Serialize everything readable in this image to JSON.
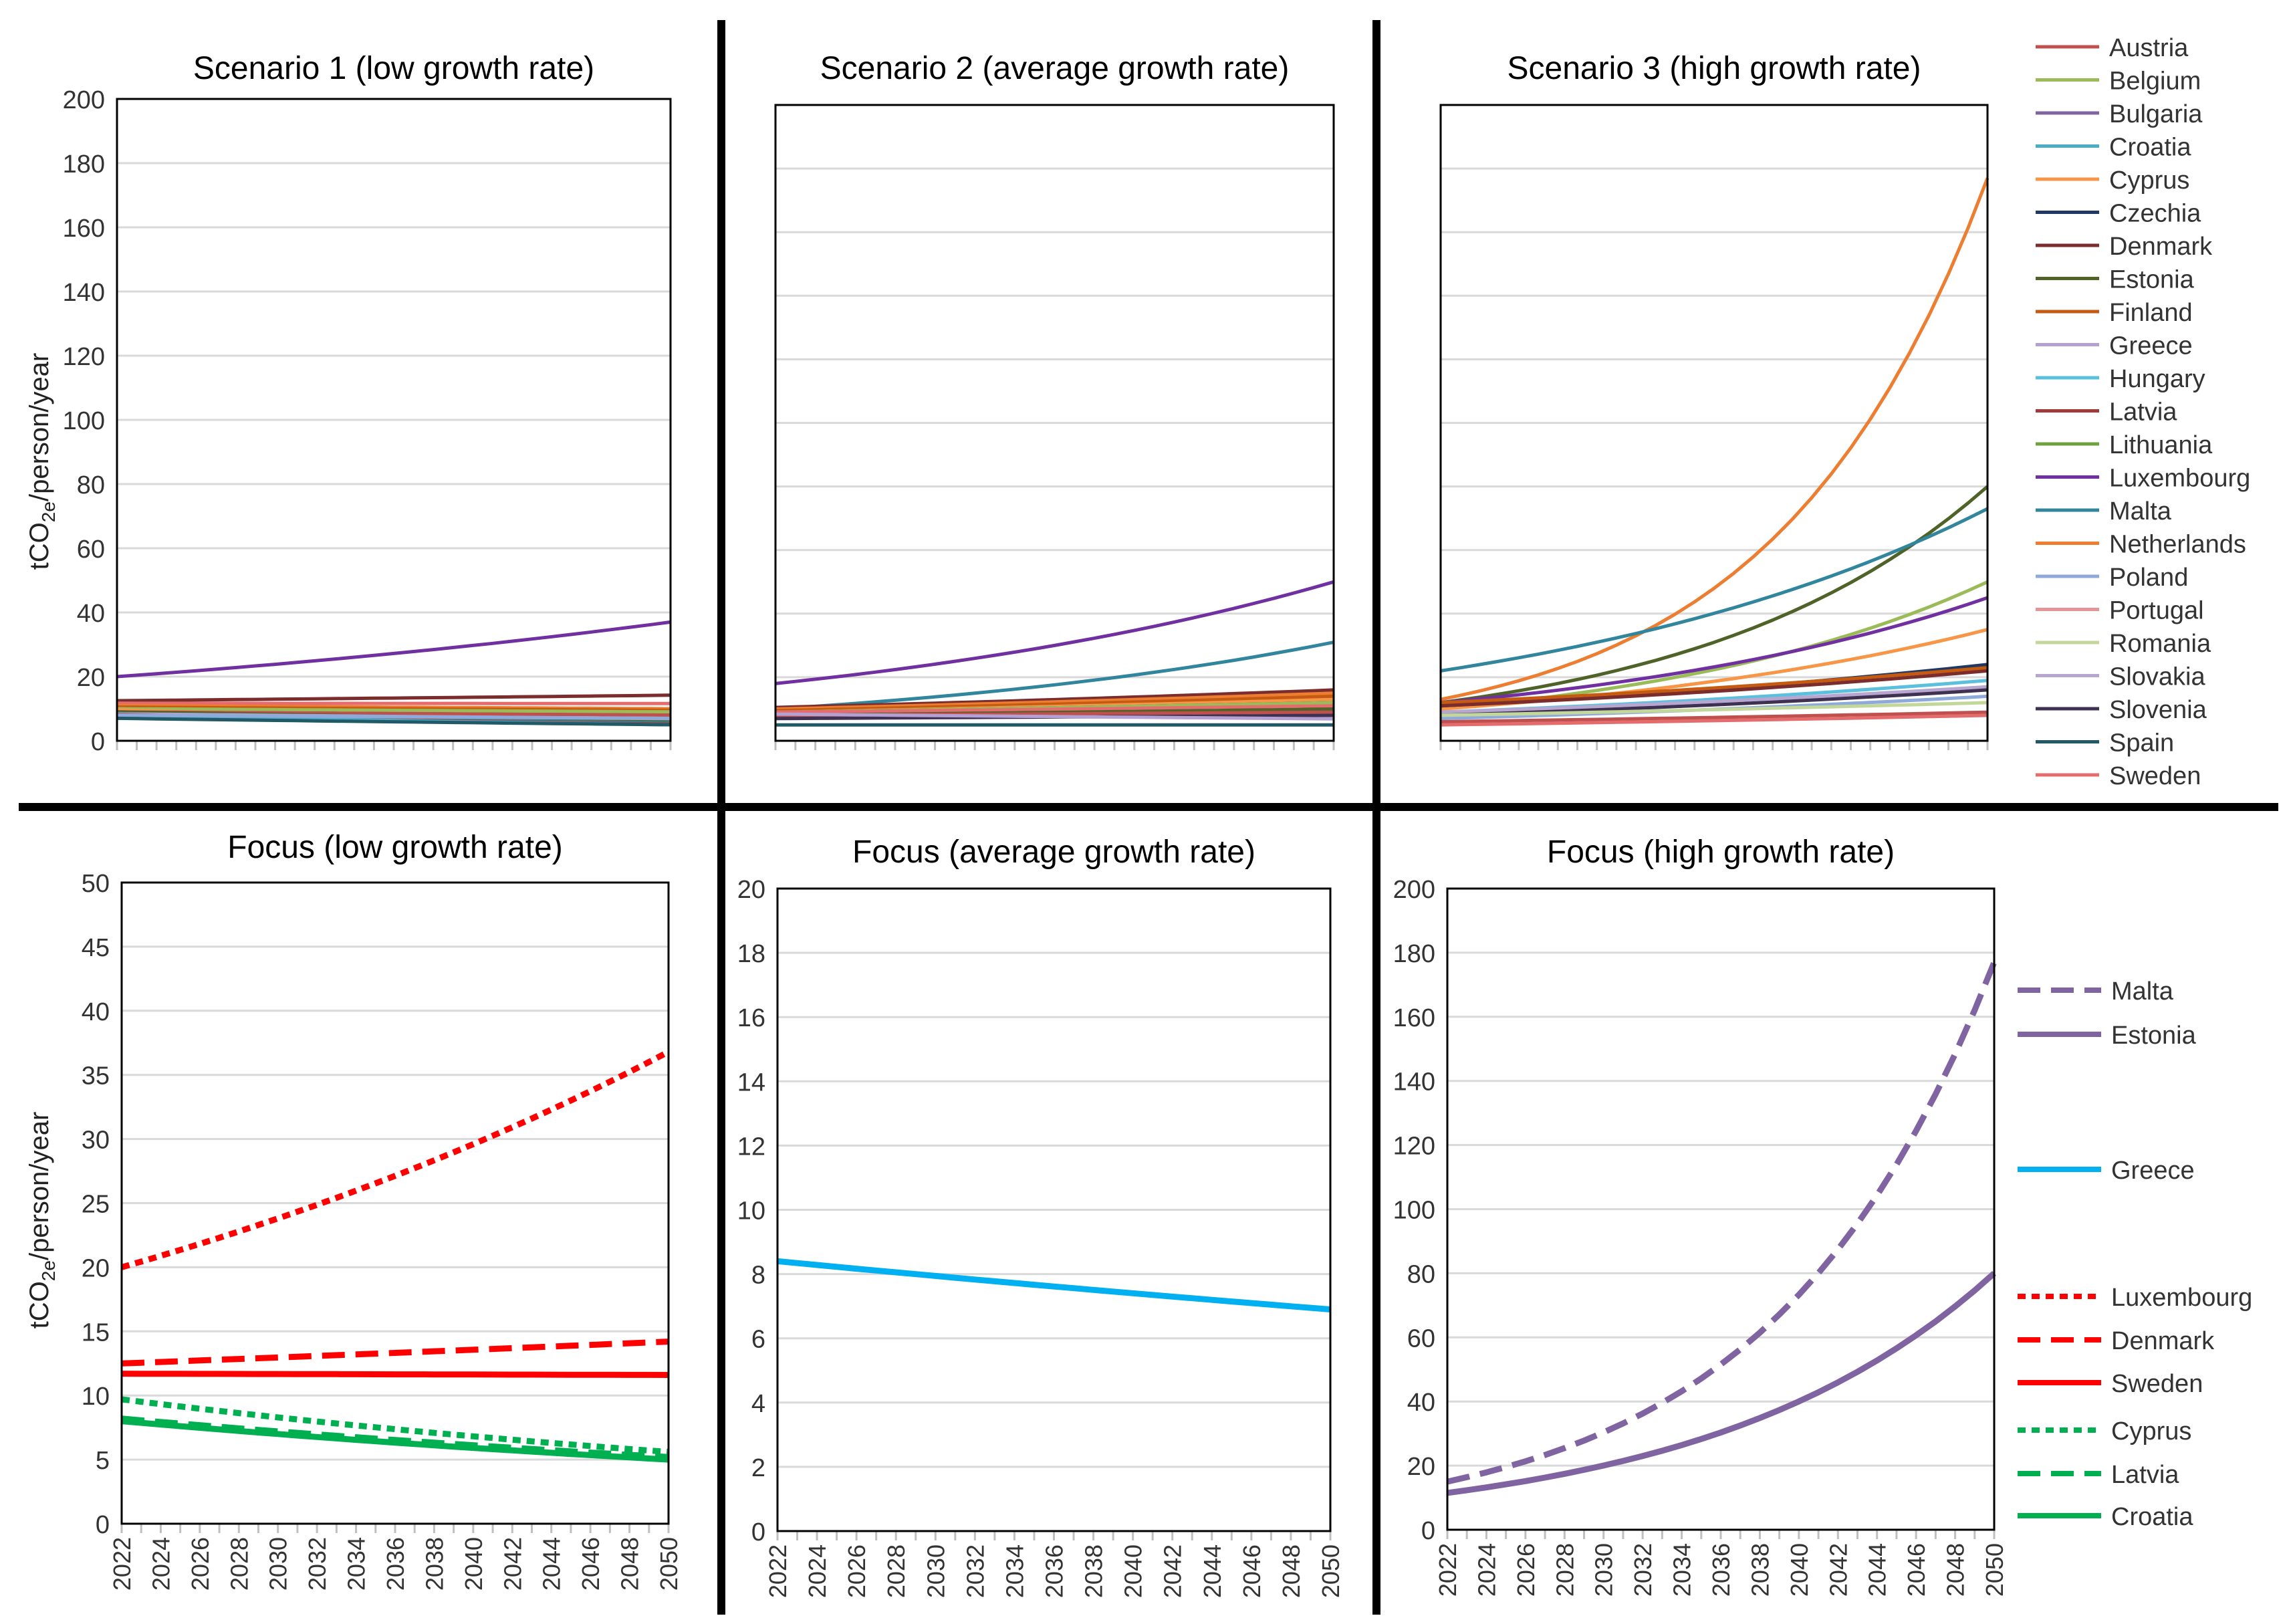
{
  "figure": {
    "y_axis_label_main": "tCO",
    "y_axis_label_sub": "2e",
    "y_axis_label_tail": "/person/year"
  },
  "colors": {
    "Austria": "#c0504d",
    "Belgium": "#9bbb59",
    "Bulgaria": "#8064a2",
    "Croatia": "#4bacc6",
    "Cyprus": "#f79646",
    "Czechia": "#1f3864",
    "Denmark": "#7b2c2c",
    "Estonia": "#4f6228",
    "Finland": "#c55a11",
    "Greece": "#b4a0d2",
    "Hungary": "#5bc0de",
    "Latvia": "#a33a3a",
    "Lithuania": "#70a040",
    "Luxembourg": "#7030a0",
    "Malta": "#31859c",
    "Netherlands": "#ed7d31",
    "Poland": "#8eaadb",
    "Portugal": "#e39696",
    "Romania": "#c4d79b",
    "Slovakia": "#b7a7d0",
    "Slovenia": "#3f3151",
    "Spain": "#215967",
    "Sweden": "#e46c6c",
    "focus_red": "#ff0000",
    "focus_green": "#00b050",
    "focus_blue": "#00b0f0",
    "focus_purple": "#8064a2"
  },
  "legend_top": [
    "Austria",
    "Belgium",
    "Bulgaria",
    "Croatia",
    "Cyprus",
    "Czechia",
    "Denmark",
    "Estonia",
    "Finland",
    "Greece",
    "Hungary",
    "Latvia",
    "Lithuania",
    "Luxembourg",
    "Malta",
    "Netherlands",
    "Poland",
    "Portugal",
    "Romania",
    "Slovakia",
    "Slovenia",
    "Spain",
    "Sweden"
  ],
  "legend_bottom": {
    "group1": [
      {
        "name": "Malta",
        "style": "dash",
        "color": "#8064a2"
      },
      {
        "name": "Estonia",
        "style": "solid",
        "color": "#8064a2"
      }
    ],
    "group2": [
      {
        "name": "Greece",
        "style": "solid",
        "color": "#00b0f0"
      }
    ],
    "group3": [
      {
        "name": "Luxembourg",
        "style": "dot",
        "color": "#ff0000"
      },
      {
        "name": "Denmark",
        "style": "dash",
        "color": "#ff0000"
      },
      {
        "name": "Sweden",
        "style": "solid",
        "color": "#ff0000"
      },
      {
        "name": "Cyprus",
        "style": "dot",
        "color": "#00b050"
      },
      {
        "name": "Latvia",
        "style": "dash",
        "color": "#00b050"
      },
      {
        "name": "Croatia",
        "style": "solid",
        "color": "#00b050"
      }
    ]
  },
  "chart_data": [
    {
      "type": "line",
      "title": "Scenario 1 (low growth rate)",
      "x_range": [
        2022,
        2050
      ],
      "ylim": [
        0,
        200
      ],
      "yticks": [
        0,
        20,
        40,
        60,
        80,
        100,
        120,
        140,
        160,
        180,
        200
      ],
      "show_y_tick_labels": true,
      "grid": true,
      "series": [
        {
          "name": "Luxembourg",
          "start": 20,
          "end": 37
        },
        {
          "name": "Denmark",
          "start": 12.5,
          "end": 14.2
        },
        {
          "name": "Sweden",
          "start": 11.7,
          "end": 11.6
        },
        {
          "name": "Netherlands",
          "start": 11,
          "end": 10
        },
        {
          "name": "Finland",
          "start": 10.5,
          "end": 9.5
        },
        {
          "name": "Czechia",
          "start": 10,
          "end": 8.5
        },
        {
          "name": "Belgium",
          "start": 10,
          "end": 9
        },
        {
          "name": "Cyprus",
          "start": 9.7,
          "end": 5.5
        },
        {
          "name": "Austria",
          "start": 9,
          "end": 8
        },
        {
          "name": "Estonia",
          "start": 9,
          "end": 6.5
        },
        {
          "name": "Malta",
          "start": 8.5,
          "end": 5.5
        },
        {
          "name": "Greece",
          "start": 8.4,
          "end": 6.9
        },
        {
          "name": "Latvia",
          "start": 8.2,
          "end": 5.2
        },
        {
          "name": "Croatia",
          "start": 8,
          "end": 5
        },
        {
          "name": "Poland",
          "start": 8,
          "end": 7
        },
        {
          "name": "Spain",
          "start": 7,
          "end": 5
        }
      ]
    },
    {
      "type": "line",
      "title": "Scenario 2 (average growth rate)",
      "x_range": [
        2022,
        2050
      ],
      "ylim": [
        0,
        200
      ],
      "yticks": [
        0,
        20,
        40,
        60,
        80,
        100,
        120,
        140,
        160,
        180,
        200
      ],
      "show_y_tick_labels": false,
      "grid": true,
      "series": [
        {
          "name": "Luxembourg",
          "start": 18,
          "end": 50
        },
        {
          "name": "Malta",
          "start": 10,
          "end": 31
        },
        {
          "name": "Denmark",
          "start": 10.5,
          "end": 16
        },
        {
          "name": "Netherlands",
          "start": 10,
          "end": 15
        },
        {
          "name": "Finland",
          "start": 9.5,
          "end": 14
        },
        {
          "name": "Cyprus",
          "start": 9,
          "end": 13
        },
        {
          "name": "Czechia",
          "start": 9,
          "end": 12
        },
        {
          "name": "Belgium",
          "start": 9,
          "end": 12
        },
        {
          "name": "Sweden",
          "start": 9,
          "end": 11
        },
        {
          "name": "Estonia",
          "start": 8,
          "end": 10
        },
        {
          "name": "Austria",
          "start": 8,
          "end": 9
        },
        {
          "name": "Slovenia",
          "start": 7,
          "end": 8
        },
        {
          "name": "Greece",
          "start": 8.4,
          "end": 6.9
        },
        {
          "name": "Spain",
          "start": 5,
          "end": 5
        }
      ]
    },
    {
      "type": "line",
      "title": "Scenario 3 (high growth rate)",
      "x_range": [
        2022,
        2050
      ],
      "ylim": [
        0,
        200
      ],
      "yticks": [
        0,
        20,
        40,
        60,
        80,
        100,
        120,
        140,
        160,
        180,
        200
      ],
      "show_y_tick_labels": false,
      "grid": true,
      "series": [
        {
          "name": "Netherlands",
          "start": 13,
          "end": 177
        },
        {
          "name": "Estonia",
          "start": 12,
          "end": 80
        },
        {
          "name": "Malta",
          "start": 22,
          "end": 73
        },
        {
          "name": "Belgium",
          "start": 10,
          "end": 50
        },
        {
          "name": "Luxembourg",
          "start": 12,
          "end": 45
        },
        {
          "name": "Cyprus",
          "start": 10,
          "end": 35
        },
        {
          "name": "Czechia",
          "start": 11,
          "end": 24
        },
        {
          "name": "Finland",
          "start": 12,
          "end": 23
        },
        {
          "name": "Denmark",
          "start": 11,
          "end": 22
        },
        {
          "name": "Hungary",
          "start": 9,
          "end": 19
        },
        {
          "name": "Slovakia",
          "start": 9,
          "end": 17
        },
        {
          "name": "Slovenia",
          "start": 8,
          "end": 16
        },
        {
          "name": "Poland",
          "start": 7,
          "end": 14
        },
        {
          "name": "Romania",
          "start": 8,
          "end": 12
        },
        {
          "name": "Austria",
          "start": 6,
          "end": 9
        },
        {
          "name": "Sweden",
          "start": 5,
          "end": 8
        }
      ]
    },
    {
      "type": "line",
      "title": "Focus (low growth rate)",
      "x_range": [
        2022,
        2050
      ],
      "xticks": [
        2022,
        2024,
        2026,
        2028,
        2030,
        2032,
        2034,
        2036,
        2038,
        2040,
        2042,
        2044,
        2046,
        2048,
        2050
      ],
      "ylim": [
        0,
        50
      ],
      "yticks": [
        0,
        5,
        10,
        15,
        20,
        25,
        30,
        35,
        40,
        45,
        50
      ],
      "grid": true,
      "series": [
        {
          "name": "Luxembourg",
          "style": "dot",
          "color": "#ff0000",
          "start": 20,
          "end": 36.8
        },
        {
          "name": "Denmark",
          "style": "dash",
          "color": "#ff0000",
          "start": 12.5,
          "end": 14.2
        },
        {
          "name": "Sweden",
          "style": "solid",
          "color": "#ff0000",
          "start": 11.7,
          "end": 11.6
        },
        {
          "name": "Cyprus",
          "style": "dot",
          "color": "#00b050",
          "start": 9.7,
          "end": 5.6
        },
        {
          "name": "Latvia",
          "style": "dash",
          "color": "#00b050",
          "start": 8.2,
          "end": 5.2
        },
        {
          "name": "Croatia",
          "style": "solid",
          "color": "#00b050",
          "start": 8.0,
          "end": 5.0
        }
      ]
    },
    {
      "type": "line",
      "title": "Focus (average growth rate)",
      "x_range": [
        2022,
        2050
      ],
      "xticks": [
        2022,
        2024,
        2026,
        2028,
        2030,
        2032,
        2034,
        2036,
        2038,
        2040,
        2042,
        2044,
        2046,
        2048,
        2050
      ],
      "ylim": [
        0,
        20
      ],
      "yticks": [
        0,
        2,
        4,
        6,
        8,
        10,
        12,
        14,
        16,
        18,
        20
      ],
      "grid": true,
      "series": [
        {
          "name": "Greece",
          "style": "solid",
          "color": "#00b0f0",
          "start": 8.4,
          "end": 6.9
        }
      ]
    },
    {
      "type": "line",
      "title": "Focus (high growth rate)",
      "x_range": [
        2022,
        2050
      ],
      "xticks": [
        2022,
        2024,
        2026,
        2028,
        2030,
        2032,
        2034,
        2036,
        2038,
        2040,
        2042,
        2044,
        2046,
        2048,
        2050
      ],
      "ylim": [
        0,
        200
      ],
      "yticks": [
        0,
        20,
        40,
        60,
        80,
        100,
        120,
        140,
        160,
        180,
        200
      ],
      "grid": true,
      "series": [
        {
          "name": "Malta",
          "style": "dash",
          "color": "#8064a2",
          "start": 15,
          "end": 177
        },
        {
          "name": "Estonia",
          "style": "solid",
          "color": "#8064a2",
          "start": 11.5,
          "end": 80
        }
      ]
    }
  ]
}
